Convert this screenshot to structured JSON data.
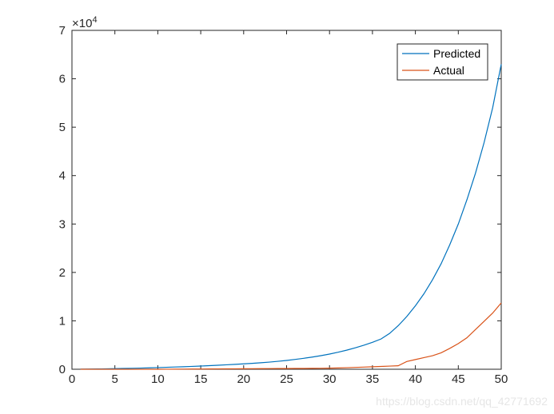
{
  "chart_data": {
    "type": "line",
    "title": "",
    "xlabel": "",
    "ylabel": "",
    "xlim": [
      0,
      50
    ],
    "ylim": [
      0,
      70000
    ],
    "x_ticks": [
      "0",
      "5",
      "10",
      "15",
      "20",
      "25",
      "30",
      "35",
      "40",
      "45",
      "50"
    ],
    "y_ticks": [
      "0",
      "1",
      "2",
      "3",
      "4",
      "5",
      "6",
      "7"
    ],
    "y_exponent": "×10",
    "y_exponent_power": "4",
    "legend": "top-right",
    "grid": false,
    "series": [
      {
        "name": "Predicted",
        "color": "#0072BD",
        "x": [
          1,
          2,
          3,
          4,
          5,
          6,
          7,
          8,
          9,
          10,
          11,
          12,
          13,
          14,
          15,
          16,
          17,
          18,
          19,
          20,
          21,
          22,
          23,
          24,
          25,
          26,
          27,
          28,
          29,
          30,
          31,
          32,
          33,
          34,
          35,
          36,
          37,
          38,
          39,
          40,
          41,
          42,
          43,
          44,
          45,
          46,
          47,
          48,
          49,
          50
        ],
        "values": [
          20,
          40,
          60,
          90,
          120,
          160,
          200,
          240,
          290,
          340,
          400,
          460,
          520,
          590,
          660,
          740,
          830,
          920,
          1010,
          1110,
          1220,
          1340,
          1480,
          1640,
          1820,
          2030,
          2260,
          2520,
          2810,
          3140,
          3520,
          3940,
          4420,
          4960,
          5560,
          6250,
          7400,
          9000,
          10900,
          13100,
          15600,
          18500,
          21800,
          25700,
          30000,
          35000,
          40500,
          46800,
          54000,
          63000
        ]
      },
      {
        "name": "Actual",
        "color": "#D95319",
        "x": [
          1,
          2,
          3,
          4,
          5,
          6,
          7,
          8,
          9,
          10,
          11,
          12,
          13,
          14,
          15,
          16,
          17,
          18,
          19,
          20,
          21,
          22,
          23,
          24,
          25,
          26,
          27,
          28,
          29,
          30,
          31,
          32,
          33,
          34,
          35,
          36,
          37,
          38,
          39,
          40,
          41,
          42,
          43,
          44,
          45,
          46,
          47,
          48,
          49,
          50
        ],
        "values": [
          0,
          0,
          0,
          0,
          0,
          0,
          0,
          0,
          0,
          0,
          10,
          20,
          30,
          40,
          50,
          60,
          70,
          80,
          90,
          100,
          110,
          120,
          130,
          140,
          150,
          160,
          170,
          180,
          200,
          230,
          270,
          320,
          380,
          440,
          510,
          580,
          650,
          720,
          1600,
          2000,
          2400,
          2800,
          3400,
          4300,
          5300,
          6500,
          8200,
          9900,
          11600,
          13700
        ]
      }
    ]
  },
  "watermark": "https://blog.csdn.net/qq_42771692"
}
